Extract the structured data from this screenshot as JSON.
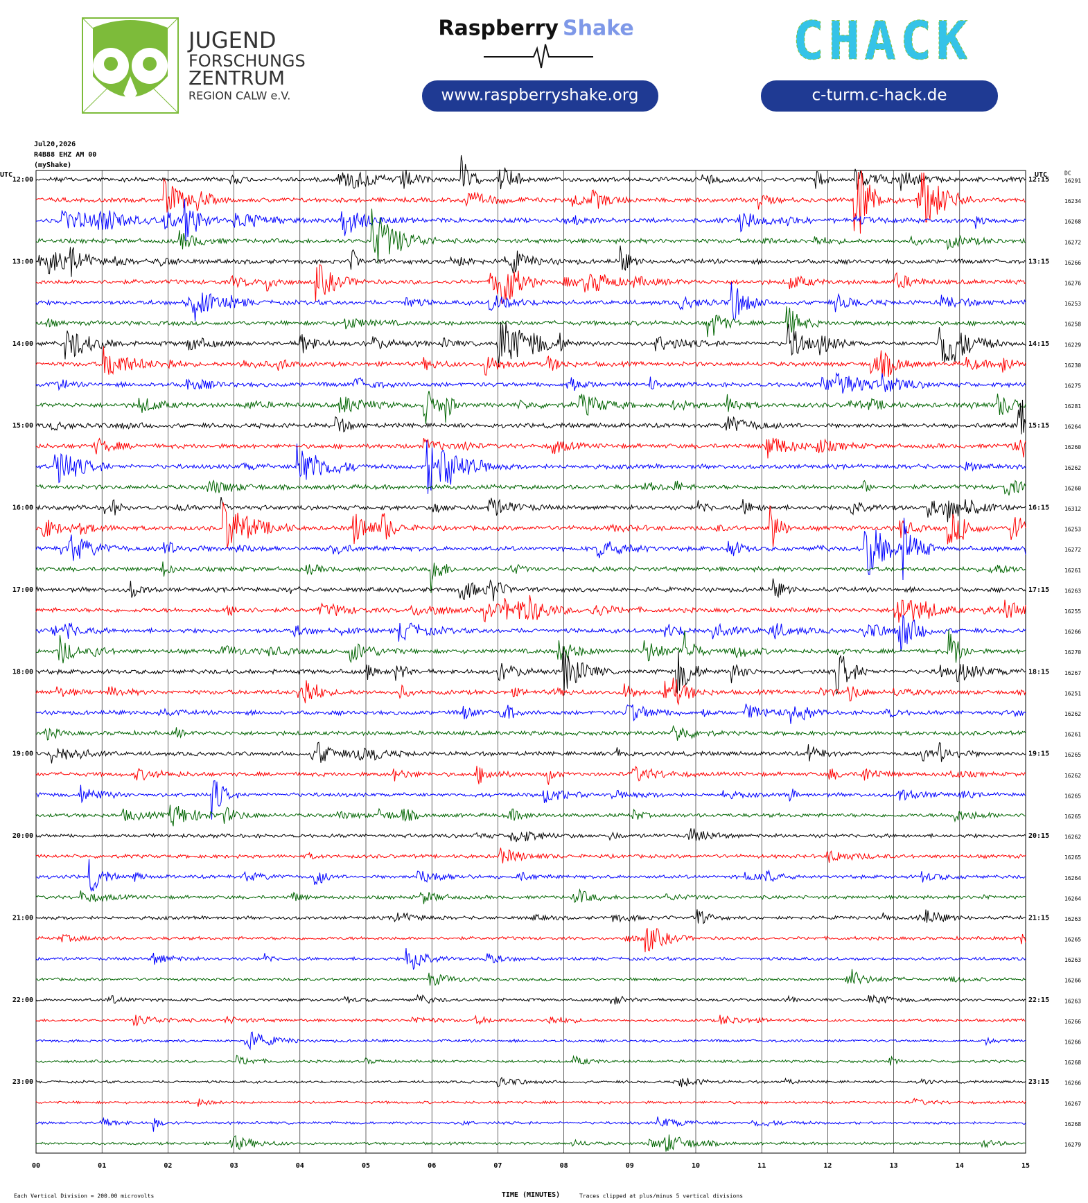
{
  "header": {
    "org_lines": [
      "JUGEND",
      "FORSCHUNGS",
      "ZENTRUM",
      "REGION CALW e.V."
    ],
    "brand_left": "Raspberry",
    "brand_right": "Shake",
    "brand_url": "www.raspberryshake.org",
    "partner": "CHACK",
    "partner_url": "c-turm.c-hack.de"
  },
  "plot": {
    "date": "Jul20,2026",
    "station": "R4B88 EHZ AM 00",
    "source": "(myShake)",
    "left_axis_title": "UTC",
    "right_axis_title": "UTC",
    "dc_title": "DC",
    "trace_colors": [
      "#000000",
      "#ff0000",
      "#0000ff",
      "#006400"
    ],
    "hour_labels": [
      "12:00",
      "13:00",
      "14:00",
      "15:00",
      "16:00",
      "17:00",
      "18:00",
      "19:00",
      "20:00",
      "21:00",
      "22:00",
      "23:00"
    ],
    "quarter_labels": [
      "12:15",
      "13:15",
      "14:15",
      "15:15",
      "16:15",
      "17:15",
      "18:15",
      "19:15",
      "20:15",
      "21:15",
      "22:15",
      "23:15"
    ],
    "dc": [
      16291,
      16234,
      16268,
      16272,
      16266,
      16276,
      16253,
      16258,
      16229,
      16230,
      16275,
      16281,
      16264,
      16260,
      16262,
      16260,
      16312,
      16253,
      16272,
      16261,
      16263,
      16255,
      16266,
      16270,
      16267,
      16251,
      16262,
      16261,
      16265,
      16262,
      16265,
      16265,
      16262,
      16265,
      16264,
      16264,
      16263,
      16265,
      16263,
      16266,
      16263,
      16266,
      16266,
      16268,
      16266,
      16267,
      16268,
      16279
    ],
    "minute_ticks": [
      "00",
      "01",
      "02",
      "03",
      "04",
      "05",
      "06",
      "07",
      "08",
      "09",
      "10",
      "11",
      "12",
      "13",
      "14",
      "15"
    ],
    "x_axis_title": "TIME (MINUTES)",
    "scale_note": "Each Vertical Division =  200.00 microvolts",
    "clip_note": "Traces clipped at plus/minus 5 vertical divisions"
  }
}
